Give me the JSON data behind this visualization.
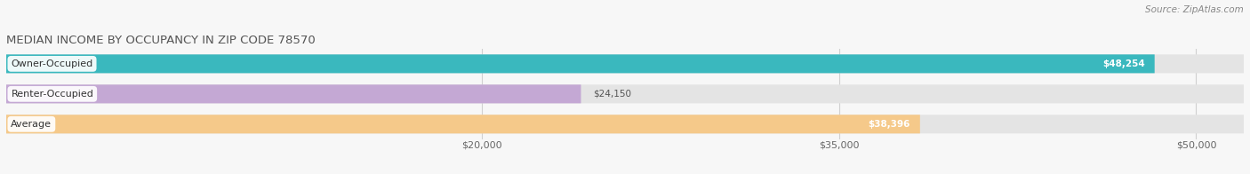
{
  "title": "MEDIAN INCOME BY OCCUPANCY IN ZIP CODE 78570",
  "source": "Source: ZipAtlas.com",
  "categories": [
    "Owner-Occupied",
    "Renter-Occupied",
    "Average"
  ],
  "values": [
    48254,
    24150,
    38396
  ],
  "bar_colors": [
    "#3ab8be",
    "#c4a8d4",
    "#f5c98a"
  ],
  "value_labels": [
    "$48,254",
    "$24,150",
    "$38,396"
  ],
  "tick_labels": [
    "$20,000",
    "$35,000",
    "$50,000"
  ],
  "tick_values": [
    20000,
    35000,
    50000
  ],
  "xmin": 0,
  "xmax": 52000,
  "bar_height": 0.62,
  "background_color": "#f7f7f7",
  "bar_bg_color": "#e4e4e4",
  "title_fontsize": 9.5,
  "label_fontsize": 8,
  "value_fontsize": 7.5,
  "source_fontsize": 7.5
}
